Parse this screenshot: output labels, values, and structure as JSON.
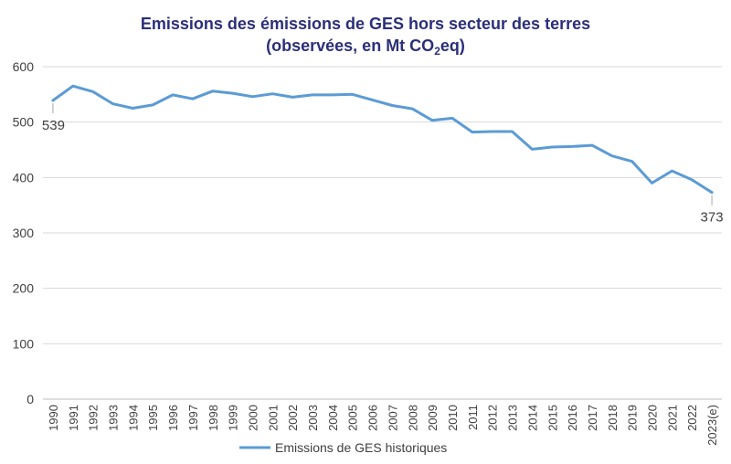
{
  "chart_data": {
    "type": "line",
    "title_line1": "Emissions des émissions de GES hors secteur des terres",
    "title_line2_prefix": "(observées, en Mt CO",
    "title_line2_sub": "2",
    "title_line2_suffix": "eq)",
    "xlabel": "",
    "ylabel": "",
    "ylim": [
      0,
      600
    ],
    "yticks": [
      0,
      100,
      200,
      300,
      400,
      500,
      600
    ],
    "grid": true,
    "legend_position": "bottom",
    "series": [
      {
        "name": "Emissions de GES historiques",
        "color": "#5b9bd5",
        "values": [
          539,
          565,
          555,
          533,
          525,
          531,
          549,
          542,
          556,
          552,
          546,
          551,
          545,
          549,
          549,
          550,
          540,
          530,
          524,
          503,
          507,
          482,
          483,
          483,
          451,
          455,
          456,
          458,
          439,
          429,
          390,
          412,
          396,
          373
        ]
      }
    ],
    "categories": [
      "1990",
      "1991",
      "1992",
      "1993",
      "1994",
      "1995",
      "1996",
      "1997",
      "1998",
      "1999",
      "2000",
      "2001",
      "2002",
      "2003",
      "2004",
      "2005",
      "2006",
      "2007",
      "2008",
      "2009",
      "2010",
      "2011",
      "2012",
      "2013",
      "2014",
      "2015",
      "2016",
      "2017",
      "2018",
      "2019",
      "2020",
      "2021",
      "2022",
      "2023(e)"
    ],
    "annotations": [
      {
        "category_index": 0,
        "label": "539"
      },
      {
        "category_index": 33,
        "label": "373"
      }
    ]
  }
}
